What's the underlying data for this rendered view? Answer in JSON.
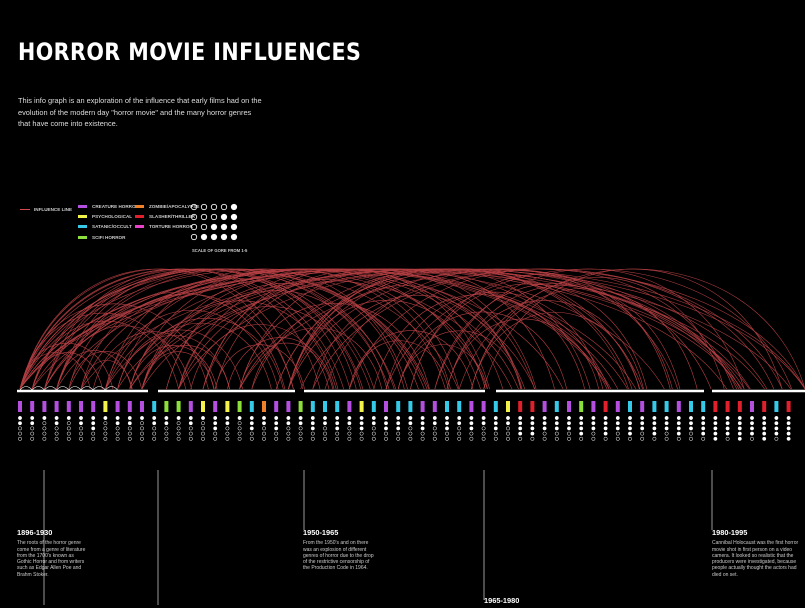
{
  "title": "HORROR MOVIE INFLUENCES",
  "intro": "This info graph is an exploration of the influence that early films had on the evolution of the modern day \"horror movie\" and the many horror genres that have come into existence.",
  "legend": {
    "line_label": "INFLUENCE LINE",
    "line_color": "#d24a4f",
    "genres": [
      {
        "label": "CREATURE HORROR",
        "color": "#b44fe0"
      },
      {
        "label": "PSYCHOLOGICAL",
        "color": "#f2f24a"
      },
      {
        "label": "SATANIC/OCCULT",
        "color": "#36c9e8"
      },
      {
        "label": "SCIFI HORROR",
        "color": "#8de03c"
      },
      {
        "label": "ZOMBIE/APOCALYPSE",
        "color": "#f0802a"
      },
      {
        "label": "SLASHER/THRILLER",
        "color": "#e0202c"
      },
      {
        "label": "TORTURE HORROR",
        "color": "#e842c8"
      }
    ],
    "scale_label": "SCALE OF GORE FROM 1-5"
  },
  "eras": [
    {
      "title": "1896-1930",
      "text": "The roots of the horror genre come from a genre of literature from the 1700's known as Gothic Horror and from writers such as Edgar Allen Poe and Brahm Stoker."
    },
    {
      "title": "1950-1965",
      "text": "From the 1950's and on there was an explosion of different genres of horror due to the drop of the restrictive censorship of the Production Code in 1964."
    },
    {
      "title": "1980-1995",
      "text": "Cannibal Holocaust was the first horror movie shot in first person on a video camera. It looked so realistic that the producers were investigated, because people actually thought the actors had died on set."
    },
    {
      "title": "1965-1980",
      "text": ""
    }
  ],
  "films": [
    {
      "title": "",
      "genre": "CREATURE HORROR",
      "gore": 2
    },
    {
      "title": "",
      "genre": "CREATURE HORROR",
      "gore": 2
    },
    {
      "title": "",
      "genre": "CREATURE HORROR",
      "gore": 1
    },
    {
      "title": "",
      "genre": "CREATURE HORROR",
      "gore": 2
    },
    {
      "title": "",
      "genre": "CREATURE HORROR",
      "gore": 1
    },
    {
      "title": "",
      "genre": "CREATURE HORROR",
      "gore": 2
    },
    {
      "title": "",
      "genre": "CREATURE HORROR",
      "gore": 3
    },
    {
      "title": "",
      "genre": "PSYCHOLOGICAL",
      "gore": 1
    },
    {
      "title": "",
      "genre": "CREATURE HORROR",
      "gore": 2
    },
    {
      "title": "",
      "genre": "CREATURE HORROR",
      "gore": 2
    },
    {
      "title": "",
      "genre": "CREATURE HORROR",
      "gore": 1
    },
    {
      "title": "",
      "genre": "SATANIC/OCCULT",
      "gore": 2
    },
    {
      "title": "",
      "genre": "SCIFI HORROR",
      "gore": 2
    },
    {
      "title": "",
      "genre": "SCIFI HORROR",
      "gore": 1
    },
    {
      "title": "",
      "genre": "CREATURE HORROR",
      "gore": 2
    },
    {
      "title": "",
      "genre": "PSYCHOLOGICAL",
      "gore": 1
    },
    {
      "title": "",
      "genre": "CREATURE HORROR",
      "gore": 3
    },
    {
      "title": "",
      "genre": "PSYCHOLOGICAL",
      "gore": 2
    },
    {
      "title": "",
      "genre": "SCIFI HORROR",
      "gore": 1
    },
    {
      "title": "",
      "genre": "SATANIC/OCCULT",
      "gore": 3
    },
    {
      "title": "",
      "genre": "ZOMBIE/APOCALYPSE",
      "gore": 2
    },
    {
      "title": "",
      "genre": "CREATURE HORROR",
      "gore": 3
    },
    {
      "title": "",
      "genre": "CREATURE HORROR",
      "gore": 2
    },
    {
      "title": "",
      "genre": "SCIFI HORROR",
      "gore": 2
    },
    {
      "title": "",
      "genre": "SATANIC/OCCULT",
      "gore": 3
    },
    {
      "title": "",
      "genre": "SATANIC/OCCULT",
      "gore": 2
    },
    {
      "title": "",
      "genre": "SATANIC/OCCULT",
      "gore": 3
    },
    {
      "title": "",
      "genre": "CREATURE HORROR",
      "gore": 2
    },
    {
      "title": "",
      "genre": "PSYCHOLOGICAL",
      "gore": 3
    },
    {
      "title": "",
      "genre": "SATANIC/OCCULT",
      "gore": 2
    },
    {
      "title": "",
      "genre": "CREATURE HORROR",
      "gore": 3
    },
    {
      "title": "",
      "genre": "SATANIC/OCCULT",
      "gore": 3
    },
    {
      "title": "",
      "genre": "SATANIC/OCCULT",
      "gore": 2
    },
    {
      "title": "",
      "genre": "CREATURE HORROR",
      "gore": 3
    },
    {
      "title": "",
      "genre": "CREATURE HORROR",
      "gore": 2
    },
    {
      "title": "",
      "genre": "SATANIC/OCCULT",
      "gore": 3
    },
    {
      "title": "",
      "genre": "SATANIC/OCCULT",
      "gore": 2
    },
    {
      "title": "",
      "genre": "CREATURE HORROR",
      "gore": 3
    },
    {
      "title": "",
      "genre": "CREATURE HORROR",
      "gore": 2
    },
    {
      "title": "",
      "genre": "SATANIC/OCCULT",
      "gore": 3
    },
    {
      "title": "",
      "genre": "PSYCHOLOGICAL",
      "gore": 2
    },
    {
      "title": "",
      "genre": "SLASHER/THRILLER",
      "gore": 4
    },
    {
      "title": "",
      "genre": "SLASHER/THRILLER",
      "gore": 4
    },
    {
      "title": "",
      "genre": "CREATURE HORROR",
      "gore": 3
    },
    {
      "title": "",
      "genre": "SATANIC/OCCULT",
      "gore": 3
    },
    {
      "title": "",
      "genre": "CREATURE HORROR",
      "gore": 3
    },
    {
      "title": "",
      "genre": "SCIFI HORROR",
      "gore": 4
    },
    {
      "title": "",
      "genre": "CREATURE HORROR",
      "gore": 3
    },
    {
      "title": "",
      "genre": "SLASHER/THRILLER",
      "gore": 4
    },
    {
      "title": "",
      "genre": "CREATURE HORROR",
      "gore": 3
    },
    {
      "title": "",
      "genre": "SATANIC/OCCULT",
      "gore": 4
    },
    {
      "title": "",
      "genre": "CREATURE HORROR",
      "gore": 3
    },
    {
      "title": "",
      "genre": "SATANIC/OCCULT",
      "gore": 4
    },
    {
      "title": "",
      "genre": "SATANIC/OCCULT",
      "gore": 3
    },
    {
      "title": "",
      "genre": "CREATURE HORROR",
      "gore": 4
    },
    {
      "title": "",
      "genre": "SATANIC/OCCULT",
      "gore": 3
    },
    {
      "title": "",
      "genre": "SATANIC/OCCULT",
      "gore": 4
    },
    {
      "title": "",
      "genre": "SLASHER/THRILLER",
      "gore": 5
    },
    {
      "title": "",
      "genre": "SLASHER/THRILLER",
      "gore": 4
    },
    {
      "title": "",
      "genre": "SLASHER/THRILLER",
      "gore": 5
    },
    {
      "title": "",
      "genre": "CREATURE HORROR",
      "gore": 4
    },
    {
      "title": "",
      "genre": "SLASHER/THRILLER",
      "gore": 5
    },
    {
      "title": "",
      "genre": "SATANIC/OCCULT",
      "gore": 4
    },
    {
      "title": "",
      "genre": "SLASHER/THRILLER",
      "gore": 5
    }
  ]
}
